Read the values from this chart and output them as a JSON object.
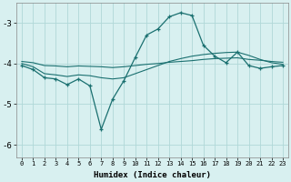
{
  "xlabel": "Humidex (Indice chaleur)",
  "background_color": "#d8f0f0",
  "grid_color": "#b0d8d8",
  "line_color": "#1a7070",
  "x_values": [
    0,
    1,
    2,
    3,
    4,
    5,
    6,
    7,
    8,
    9,
    10,
    11,
    12,
    13,
    14,
    15,
    16,
    17,
    18,
    19,
    20,
    21,
    22,
    23
  ],
  "line1_y": [
    -4.05,
    -4.15,
    -4.35,
    -4.38,
    -4.52,
    -4.38,
    -4.55,
    -5.62,
    -4.88,
    -4.42,
    -3.85,
    -3.3,
    -3.15,
    -2.85,
    -2.75,
    -2.82,
    -3.55,
    -3.82,
    -3.98,
    -3.72,
    -4.05,
    -4.12,
    -4.08,
    -4.05
  ],
  "line2_y": [
    -4.0,
    -4.08,
    -4.25,
    -4.28,
    -4.32,
    -4.28,
    -4.3,
    -4.35,
    -4.38,
    -4.35,
    -4.25,
    -4.15,
    -4.05,
    -3.95,
    -3.88,
    -3.82,
    -3.78,
    -3.75,
    -3.73,
    -3.72,
    -3.8,
    -3.9,
    -3.98,
    -4.02
  ],
  "line3_y": [
    -3.95,
    -3.98,
    -4.05,
    -4.06,
    -4.08,
    -4.06,
    -4.07,
    -4.08,
    -4.1,
    -4.08,
    -4.05,
    -4.02,
    -4.0,
    -3.97,
    -3.95,
    -3.93,
    -3.9,
    -3.88,
    -3.87,
    -3.86,
    -3.9,
    -3.92,
    -3.95,
    -3.97
  ],
  "ylim": [
    -6.3,
    -2.5
  ],
  "xlim": [
    -0.5,
    23.5
  ],
  "yticks": [
    -6,
    -5,
    -4,
    -3
  ],
  "xticks": [
    0,
    1,
    2,
    3,
    4,
    5,
    6,
    7,
    8,
    9,
    10,
    11,
    12,
    13,
    14,
    15,
    16,
    17,
    18,
    19,
    20,
    21,
    22,
    23
  ]
}
